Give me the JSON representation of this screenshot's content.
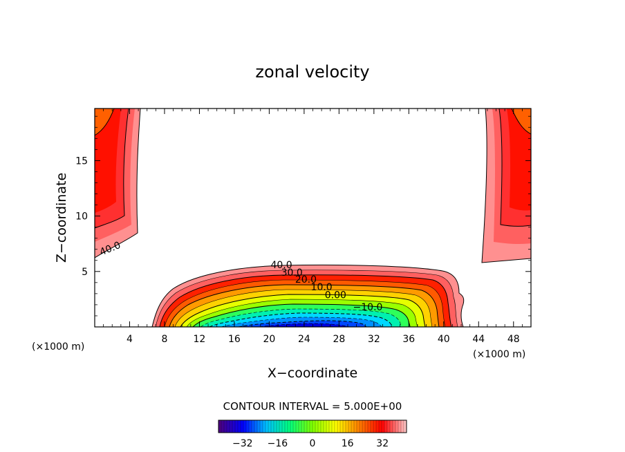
{
  "chart_data": {
    "type": "contour",
    "title": "zonal velocity",
    "xlabel": "X−coordinate",
    "ylabel": "Z−coordinate",
    "x_unit_left": "(×1000 m)",
    "x_unit_right": "(×1000 m)",
    "xlim": [
      0,
      50
    ],
    "ylim": [
      0,
      19.7
    ],
    "x_ticks": [
      4,
      8,
      12,
      16,
      20,
      24,
      28,
      32,
      36,
      40,
      44,
      48
    ],
    "y_ticks": [
      5,
      10,
      15
    ],
    "contour_interval_text": "CONTOUR INTERVAL = 5.000E+00",
    "contour_labels": [
      {
        "text": "40.0",
        "x": 1.9,
        "z": 6.8
      },
      {
        "text": "40.0",
        "x": 21.4,
        "z": 5.3
      },
      {
        "text": "30.0",
        "x": 22.6,
        "z": 4.6
      },
      {
        "text": "20.0",
        "x": 24.2,
        "z": 4.0
      },
      {
        "text": "10.0",
        "x": 26.0,
        "z": 3.3
      },
      {
        "text": "0.00",
        "x": 27.6,
        "z": 2.6
      },
      {
        "text": "−10.0",
        "x": 31.3,
        "z": 1.5
      }
    ],
    "colorbar": {
      "range": [
        -43,
        43
      ],
      "tick_values": [
        -32,
        -16,
        0,
        16,
        32
      ],
      "tick_labels": [
        "−32",
        "−16",
        "0",
        "16",
        "32"
      ],
      "colors": [
        "#4b0082",
        "#0000ff",
        "#00bfff",
        "#00ff80",
        "#80ff00",
        "#ffff00",
        "#ff8000",
        "#ff0000",
        "#ffc0c0"
      ]
    }
  }
}
